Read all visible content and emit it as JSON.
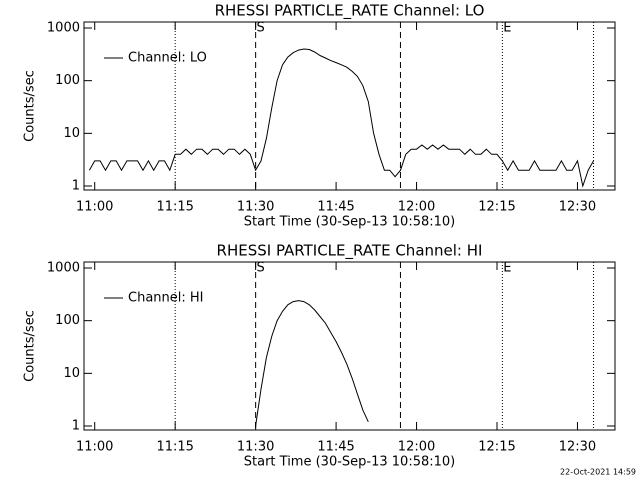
{
  "chart_data": [
    {
      "type": "line",
      "title": "RHESSI PARTICLE_RATE Channel: LO",
      "xlabel": "Start Time (30-Sep-13 10:58:10)",
      "ylabel": "Counts/sec",
      "log_y": true,
      "legend": "upper left",
      "xlim": [
        "10:58",
        "12:37"
      ],
      "ylim": [
        0.84,
        1300
      ],
      "xticks": [
        "11:00",
        "11:15",
        "11:30",
        "11:45",
        "12:00",
        "12:15",
        "12:30"
      ],
      "yticks": [
        1,
        10,
        100,
        1000
      ],
      "markers": [
        {
          "x": "11:15",
          "style": "dotted"
        },
        {
          "x": "11:30",
          "style": "dashed",
          "label": "S"
        },
        {
          "x": "11:57",
          "style": "dashed"
        },
        {
          "x": "12:16",
          "style": "dotted",
          "label": "E"
        },
        {
          "x": "12:33",
          "style": "dotted"
        }
      ],
      "x": [
        "10:59",
        "11:00",
        "11:01",
        "11:02",
        "11:03",
        "11:04",
        "11:05",
        "11:06",
        "11:07",
        "11:08",
        "11:09",
        "11:10",
        "11:11",
        "11:12",
        "11:13",
        "11:14",
        "11:15",
        "11:16",
        "11:17",
        "11:18",
        "11:19",
        "11:20",
        "11:21",
        "11:22",
        "11:23",
        "11:24",
        "11:25",
        "11:26",
        "11:27",
        "11:28",
        "11:29",
        "11:30",
        "11:31",
        "11:32",
        "11:33",
        "11:34",
        "11:35",
        "11:36",
        "11:37",
        "11:38",
        "11:39",
        "11:40",
        "11:41",
        "11:42",
        "11:43",
        "11:44",
        "11:45",
        "11:46",
        "11:47",
        "11:48",
        "11:49",
        "11:50",
        "11:51",
        "11:52",
        "11:53",
        "11:54",
        "11:55",
        "11:56",
        "11:57",
        "11:58",
        "11:59",
        "12:00",
        "12:01",
        "12:02",
        "12:03",
        "12:04",
        "12:05",
        "12:06",
        "12:07",
        "12:08",
        "12:09",
        "12:10",
        "12:11",
        "12:12",
        "12:13",
        "12:14",
        "12:15",
        "12:16",
        "12:17",
        "12:18",
        "12:19",
        "12:20",
        "12:21",
        "12:22",
        "12:23",
        "12:24",
        "12:25",
        "12:26",
        "12:27",
        "12:28",
        "12:29",
        "12:30",
        "12:31",
        "12:32",
        "12:33"
      ],
      "series": [
        {
          "name": "Channel: LO",
          "color": "#000000",
          "values": [
            2,
            3,
            3,
            2,
            3,
            3,
            2,
            3,
            3,
            3,
            2,
            3,
            2,
            3,
            3,
            2,
            4,
            4,
            5,
            4,
            5,
            5,
            4,
            5,
            5,
            4,
            5,
            5,
            4,
            5,
            4,
            2,
            3,
            8,
            30,
            100,
            200,
            280,
            340,
            380,
            400,
            390,
            350,
            300,
            270,
            240,
            220,
            200,
            180,
            150,
            120,
            80,
            40,
            10,
            4,
            2,
            2,
            1.5,
            2,
            4,
            5,
            5,
            6,
            5,
            6,
            5,
            6,
            5,
            5,
            5,
            4,
            5,
            4,
            4,
            5,
            4,
            4,
            3,
            2,
            3,
            2,
            2,
            2,
            3,
            2,
            2,
            2,
            2,
            3,
            2,
            2,
            3,
            1,
            2,
            3
          ]
        }
      ]
    },
    {
      "type": "line",
      "title": "RHESSI PARTICLE_RATE Channel: HI",
      "xlabel": "Start Time (30-Sep-13 10:58:10)",
      "ylabel": "Counts/sec",
      "log_y": true,
      "legend": "upper left",
      "xlim": [
        "10:58",
        "12:37"
      ],
      "ylim": [
        0.84,
        1300
      ],
      "xticks": [
        "11:00",
        "11:15",
        "11:30",
        "11:45",
        "12:00",
        "12:15",
        "12:30"
      ],
      "yticks": [
        1,
        10,
        100,
        1000
      ],
      "markers": [
        {
          "x": "11:15",
          "style": "dotted"
        },
        {
          "x": "11:30",
          "style": "dashed",
          "label": "S"
        },
        {
          "x": "11:57",
          "style": "dashed"
        },
        {
          "x": "12:16",
          "style": "dotted",
          "label": "E"
        },
        {
          "x": "12:33",
          "style": "dotted"
        }
      ],
      "x": [
        "11:30",
        "11:31",
        "11:32",
        "11:33",
        "11:34",
        "11:35",
        "11:36",
        "11:37",
        "11:38",
        "11:39",
        "11:40",
        "11:41",
        "11:42",
        "11:43",
        "11:44",
        "11:45",
        "11:46",
        "11:47",
        "11:48",
        "11:49",
        "11:50",
        "11:51"
      ],
      "series": [
        {
          "name": "Channel: HI",
          "color": "#000000",
          "values": [
            1,
            5,
            20,
            50,
            100,
            150,
            200,
            230,
            240,
            230,
            200,
            160,
            120,
            90,
            60,
            40,
            25,
            15,
            8,
            4,
            2,
            1.2
          ]
        }
      ]
    }
  ],
  "footer": "22-Oct-2021 14:59"
}
